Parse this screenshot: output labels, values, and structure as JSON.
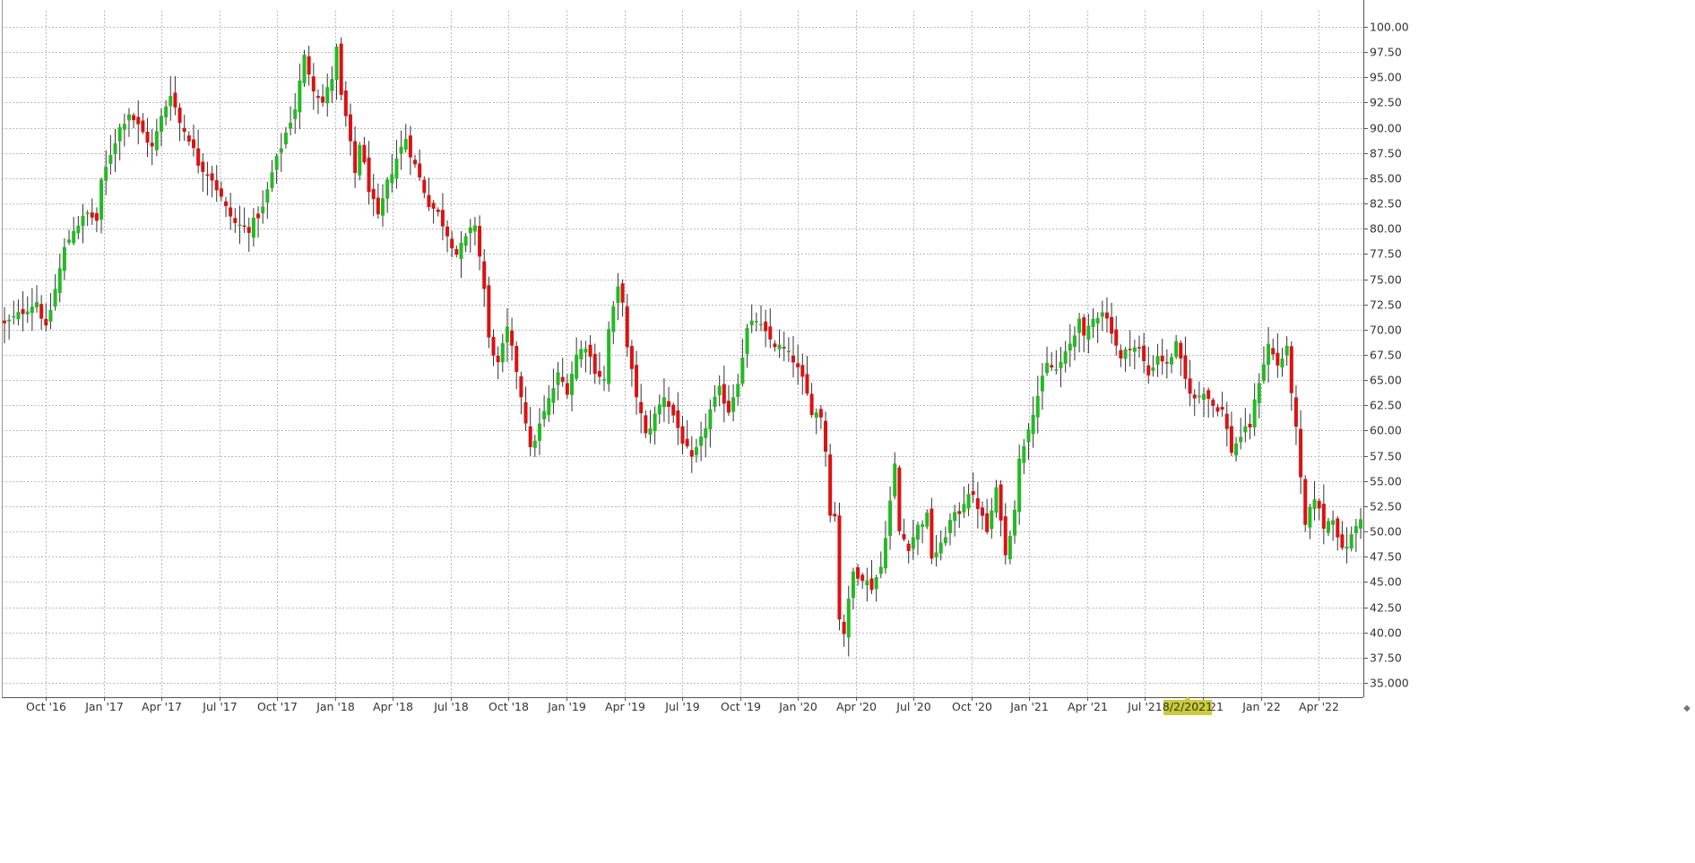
{
  "chart_data": {
    "type": "candlestick",
    "grid": true,
    "colors": {
      "up": "#22bb22",
      "down": "#dd1111",
      "wick": "#333333",
      "grid": "#bbbbbb",
      "axis": "#555555",
      "crosshair_label_bg": "#cccc33"
    },
    "y_axis": {
      "position": "right",
      "ylim": [
        35.0,
        100.0
      ],
      "ticks": [
        "100.00",
        "97.50",
        "95.00",
        "92.50",
        "90.00",
        "87.50",
        "85.00",
        "82.50",
        "80.00",
        "77.50",
        "75.00",
        "72.50",
        "70.00",
        "67.50",
        "65.00",
        "62.50",
        "60.00",
        "57.50",
        "55.00",
        "52.50",
        "50.00",
        "47.50",
        "45.00",
        "42.50",
        "40.00",
        "37.50",
        "35.000"
      ]
    },
    "x_axis": {
      "tick_labels": [
        "Oct '16",
        "Jan '17",
        "Apr '17",
        "Jul '17",
        "Oct '17",
        "Jan '18",
        "Apr '18",
        "Jul '18",
        "Oct '18",
        "Jan '19",
        "Apr '19",
        "Jul '19",
        "Oct '19",
        "Jan '20",
        "Apr '20",
        "Jul '20",
        "Oct '20",
        "Jan '21",
        "Apr '21",
        "Jul '21",
        "Oct '21",
        "Jan '22",
        "Apr '22"
      ],
      "crosshair_label": "8/2/2021",
      "crosshair_after_tick": "Jul '21"
    },
    "price_path": [
      [
        0,
        70.5
      ],
      [
        7,
        72.8
      ],
      [
        9,
        70.0
      ],
      [
        11,
        74.0
      ],
      [
        13,
        78.0
      ],
      [
        15,
        80.0
      ],
      [
        18,
        81.5
      ],
      [
        20,
        80.8
      ],
      [
        21,
        84.5
      ],
      [
        23,
        87.5
      ],
      [
        25,
        90.0
      ],
      [
        27,
        91.5
      ],
      [
        30,
        89.5
      ],
      [
        32,
        88.0
      ],
      [
        34,
        91.0
      ],
      [
        36,
        93.5
      ],
      [
        38,
        90.5
      ],
      [
        40,
        89.0
      ],
      [
        42,
        86.5
      ],
      [
        45,
        85.0
      ],
      [
        48,
        82.0
      ],
      [
        50,
        80.5
      ],
      [
        53,
        80.0
      ],
      [
        56,
        82.0
      ],
      [
        58,
        85.5
      ],
      [
        61,
        89.5
      ],
      [
        63,
        92.0
      ],
      [
        65,
        97.0
      ],
      [
        67,
        94.0
      ],
      [
        69,
        92.5
      ],
      [
        71,
        95.0
      ],
      [
        72,
        97.8
      ],
      [
        73,
        93.0
      ],
      [
        74,
        91.0
      ],
      [
        76,
        85.5
      ],
      [
        77,
        88.5
      ],
      [
        79,
        84.0
      ],
      [
        81,
        81.0
      ],
      [
        83,
        84.5
      ],
      [
        85,
        87.0
      ],
      [
        87,
        89.0
      ],
      [
        88,
        87.5
      ],
      [
        90,
        85.0
      ],
      [
        92,
        82.5
      ],
      [
        94,
        81.5
      ],
      [
        96,
        79.5
      ],
      [
        98,
        77.5
      ],
      [
        100,
        79.0
      ],
      [
        102,
        80.5
      ],
      [
        104,
        74.0
      ],
      [
        105,
        69.0
      ],
      [
        107,
        66.5
      ],
      [
        109,
        70.0
      ],
      [
        111,
        66.0
      ],
      [
        113,
        61.0
      ],
      [
        114,
        58.0
      ],
      [
        116,
        60.5
      ],
      [
        118,
        63.0
      ],
      [
        120,
        65.5
      ],
      [
        122,
        64.0
      ],
      [
        124,
        67.5
      ],
      [
        126,
        68.5
      ],
      [
        128,
        66.0
      ],
      [
        130,
        65.0
      ],
      [
        131,
        70.0
      ],
      [
        133,
        74.0
      ],
      [
        134,
        73.0
      ],
      [
        135,
        68.0
      ],
      [
        137,
        63.5
      ],
      [
        139,
        59.5
      ],
      [
        141,
        61.5
      ],
      [
        143,
        63.5
      ],
      [
        145,
        61.5
      ],
      [
        147,
        59.0
      ],
      [
        149,
        57.0
      ],
      [
        151,
        59.0
      ],
      [
        153,
        62.0
      ],
      [
        155,
        64.0
      ],
      [
        157,
        62.0
      ],
      [
        159,
        65.0
      ],
      [
        161,
        70.0
      ],
      [
        163,
        71.0
      ],
      [
        165,
        69.5
      ],
      [
        167,
        68.5
      ],
      [
        169,
        68.0
      ],
      [
        171,
        67.0
      ],
      [
        173,
        65.0
      ],
      [
        175,
        62.0
      ],
      [
        177,
        61.5
      ],
      [
        178,
        58.0
      ],
      [
        179,
        52.0
      ],
      [
        180,
        51.5
      ],
      [
        181,
        41.5
      ],
      [
        182,
        40.0
      ],
      [
        184,
        46.0
      ],
      [
        186,
        45.5
      ],
      [
        188,
        44.5
      ],
      [
        190,
        46.5
      ],
      [
        192,
        53.0
      ],
      [
        193,
        56.5
      ],
      [
        194,
        50.0
      ],
      [
        196,
        48.5
      ],
      [
        198,
        50.5
      ],
      [
        200,
        51.5
      ],
      [
        201,
        47.5
      ],
      [
        203,
        48.5
      ],
      [
        205,
        51.0
      ],
      [
        207,
        52.0
      ],
      [
        209,
        54.0
      ],
      [
        211,
        52.5
      ],
      [
        213,
        50.0
      ],
      [
        215,
        54.0
      ],
      [
        216,
        51.5
      ],
      [
        217,
        47.5
      ],
      [
        219,
        52.5
      ],
      [
        220,
        57.0
      ],
      [
        222,
        60.5
      ],
      [
        224,
        63.5
      ],
      [
        226,
        66.5
      ],
      [
        228,
        66.0
      ],
      [
        230,
        67.5
      ],
      [
        232,
        69.5
      ],
      [
        233,
        71.5
      ],
      [
        234,
        69.0
      ],
      [
        236,
        71.0
      ],
      [
        238,
        72.0
      ],
      [
        240,
        70.0
      ],
      [
        242,
        67.0
      ],
      [
        244,
        68.5
      ],
      [
        246,
        68.0
      ],
      [
        248,
        65.5
      ],
      [
        250,
        67.5
      ],
      [
        252,
        66.5
      ],
      [
        254,
        68.5
      ],
      [
        256,
        65.0
      ],
      [
        258,
        63.0
      ],
      [
        260,
        64.0
      ],
      [
        262,
        62.5
      ],
      [
        264,
        62.0
      ],
      [
        266,
        58.0
      ],
      [
        268,
        59.5
      ],
      [
        270,
        60.5
      ],
      [
        272,
        65.0
      ],
      [
        274,
        68.5
      ],
      [
        276,
        66.5
      ],
      [
        278,
        68.0
      ],
      [
        280,
        60.0
      ],
      [
        281,
        55.0
      ],
      [
        282,
        50.5
      ],
      [
        284,
        53.5
      ],
      [
        286,
        50.5
      ],
      [
        288,
        51.5
      ],
      [
        290,
        48.0
      ],
      [
        292,
        49.5
      ],
      [
        294,
        51.5
      ]
    ]
  }
}
